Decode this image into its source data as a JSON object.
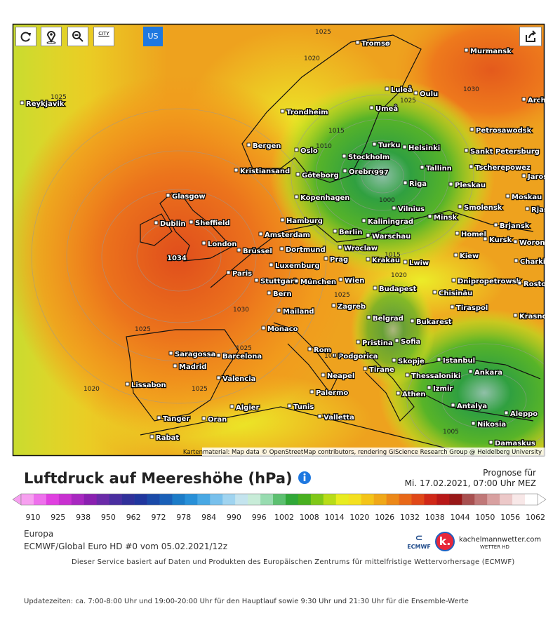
{
  "toolbar": {
    "city": "CITY",
    "us": "US"
  },
  "map": {
    "attribution": "Kartenmaterial: Map data © OpenStreetMap contributors, rendering GIScience Research Group @ Heidelberg University",
    "cities": [
      "Reykjavik",
      "Tromsø",
      "Murmansk",
      "Luleå",
      "Oulu",
      "Arch",
      "Umeå",
      "Trondheim",
      "Petrosawodsk",
      "Bergen",
      "Oslo",
      "Turku",
      "Helsinki",
      "Sankt Petersburg",
      "Stockholm",
      "Kristiansand",
      "Göteborg",
      "Orebro",
      "Tallinn",
      "Tscherepowez",
      "Jaros",
      "Riga",
      "Pleskau",
      "Glasgow",
      "Kopenhagen",
      "Moskau",
      "Vilnius",
      "Smolensk",
      "Rjas",
      "Dublin",
      "Sheffield",
      "Hamburg",
      "Kaliningrad",
      "Minsk",
      "Brjansk",
      "Amsterdam",
      "Berlin",
      "Homel",
      "Kursk",
      "Worone",
      "London",
      "Warschau",
      "Brüssel",
      "Dortmund",
      "Wroclaw",
      "Kiew",
      "Prag",
      "Krakau",
      "Lwiw",
      "Charkiw",
      "Luxemburg",
      "Paris",
      "Stuttgart",
      "München",
      "Wien",
      "Dnipropetrowsk",
      "Rosto",
      "Budapest",
      "Chisinău",
      "Bern",
      "Zagreb",
      "Tiraspol",
      "Mailand",
      "Krasno",
      "Belgrad",
      "Bukarest",
      "Monaco",
      "Pristina",
      "Sofia",
      "Saragossa",
      "Barcelona",
      "Rom",
      "Podgorica",
      "Istanbul",
      "Madrid",
      "Skopje",
      "Tirane",
      "Ankara",
      "Neapel",
      "Valencia",
      "Thessaloniki",
      "Lissabon",
      "Izmir",
      "Palermo",
      "Athen",
      "Algier",
      "Tunis",
      "Antalya",
      "Aleppo",
      "Tanger",
      "Oran",
      "Valletta",
      "Nikosia",
      "Rabat",
      "Damaskus"
    ],
    "isobar_labels": [
      "1025",
      "1020",
      "1025",
      "1030",
      "1025",
      "1015",
      "1010",
      "997",
      "1000",
      "1034",
      "1030",
      "1025",
      "1015",
      "1020",
      "1025",
      "1025",
      "1020",
      "1025",
      "1005",
      "1010"
    ]
  },
  "title": "Luftdruck auf Meereshöhe (hPa)",
  "forecast": {
    "label": "Prognose für",
    "date": "Mi. 17.02.2021, 07:00 Uhr MEZ"
  },
  "colorbar": {
    "ticks": [
      "910",
      "925",
      "938",
      "950",
      "962",
      "972",
      "978",
      "984",
      "990",
      "996",
      "1002",
      "1008",
      "1014",
      "1020",
      "1026",
      "1032",
      "1038",
      "1044",
      "1050",
      "1056",
      "1062"
    ],
    "colors": [
      "#f7a0f0",
      "#ee70ec",
      "#e040e0",
      "#c830d0",
      "#a828c0",
      "#8a20b0",
      "#6a2aa8",
      "#4a2ea0",
      "#30309a",
      "#20369e",
      "#1a4aa8",
      "#1a60b8",
      "#1c7cc8",
      "#2890d8",
      "#48a8e4",
      "#78c0ec",
      "#a0d4f0",
      "#c4e4ee",
      "#c8ecd8",
      "#98dcb0",
      "#5cc070",
      "#30a838",
      "#48b020",
      "#80c818",
      "#b8dc18",
      "#e8ec20",
      "#f4e020",
      "#f4c418",
      "#f0a818",
      "#ec8818",
      "#e86818",
      "#e04818",
      "#d02818",
      "#b81818",
      "#981818",
      "#a85050",
      "#c07878",
      "#d8a0a0",
      "#ecc8c8",
      "#f8e8e8",
      "#ffffff"
    ]
  },
  "footer": {
    "region": "Europa",
    "model": "ECMWF/Global Euro HD #0 vom 05.02.2021/12z",
    "ecmwf_logo": "ECMWF",
    "brand": "kachelmannwetter.com",
    "brand_sub": "WETTER HD",
    "service": "Dieser Service basiert auf Daten und Produkten des Europäischen Zentrums für mittelfristige Wettervorhersage (ECMWF)",
    "updates": "Updatezeiten: ca. 7:00-8:00 Uhr und 19:00-20:00 Uhr für den Hauptlauf sowie 9:30 Uhr und 21:30 Uhr für die Ensemble-Werte"
  }
}
